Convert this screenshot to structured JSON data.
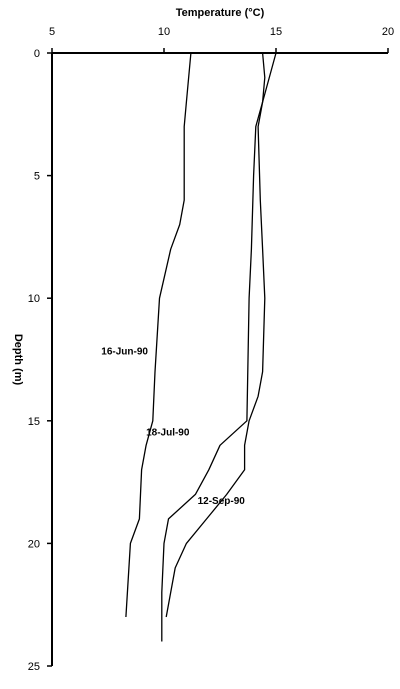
{
  "chart_data": {
    "type": "line",
    "title": "",
    "xlabel": "Temperature (°C)",
    "ylabel": "Depth (m)",
    "xlim": [
      5,
      20
    ],
    "ylim": [
      0,
      25
    ],
    "x_ticks": [
      5,
      10,
      15,
      20
    ],
    "y_ticks": [
      0,
      5,
      10,
      15,
      20,
      25
    ],
    "x_tick_labels": [
      "5",
      "10",
      "15",
      "20"
    ],
    "y_tick_labels": [
      "0",
      "5",
      "10",
      "15",
      "20",
      "25"
    ],
    "x_axis_position": "top",
    "y_axis_direction": "depth increasing downward",
    "grid": false,
    "legend": "none; series labelled inline",
    "series": [
      {
        "name": "16-Jun-90",
        "color": "#000000",
        "points": [
          {
            "temp": 11.2,
            "depth": 0
          },
          {
            "temp": 11.0,
            "depth": 2
          },
          {
            "temp": 10.9,
            "depth": 3
          },
          {
            "temp": 10.9,
            "depth": 6
          },
          {
            "temp": 10.7,
            "depth": 7
          },
          {
            "temp": 10.3,
            "depth": 8
          },
          {
            "temp": 9.8,
            "depth": 10
          },
          {
            "temp": 9.6,
            "depth": 13
          },
          {
            "temp": 9.5,
            "depth": 15
          },
          {
            "temp": 9.2,
            "depth": 16
          },
          {
            "temp": 9.0,
            "depth": 17
          },
          {
            "temp": 8.9,
            "depth": 19
          },
          {
            "temp": 8.5,
            "depth": 20
          },
          {
            "temp": 8.3,
            "depth": 23
          }
        ]
      },
      {
        "name": "18-Jul-90",
        "color": "#000000",
        "points": [
          {
            "temp": 14.4,
            "depth": 0
          },
          {
            "temp": 14.5,
            "depth": 1
          },
          {
            "temp": 14.4,
            "depth": 2
          },
          {
            "temp": 14.1,
            "depth": 3
          },
          {
            "temp": 14.0,
            "depth": 5
          },
          {
            "temp": 13.9,
            "depth": 8
          },
          {
            "temp": 13.8,
            "depth": 10
          },
          {
            "temp": 13.7,
            "depth": 15
          },
          {
            "temp": 12.5,
            "depth": 16
          },
          {
            "temp": 12.0,
            "depth": 17
          },
          {
            "temp": 11.4,
            "depth": 18
          },
          {
            "temp": 10.2,
            "depth": 19
          },
          {
            "temp": 10.0,
            "depth": 20
          },
          {
            "temp": 9.9,
            "depth": 22
          },
          {
            "temp": 9.9,
            "depth": 24
          }
        ]
      },
      {
        "name": "12-Sep-90",
        "color": "#000000",
        "points": [
          {
            "temp": 15.0,
            "depth": 0
          },
          {
            "temp": 14.7,
            "depth": 1
          },
          {
            "temp": 14.4,
            "depth": 2
          },
          {
            "temp": 14.2,
            "depth": 3
          },
          {
            "temp": 14.3,
            "depth": 6
          },
          {
            "temp": 14.4,
            "depth": 8
          },
          {
            "temp": 14.5,
            "depth": 10
          },
          {
            "temp": 14.4,
            "depth": 13
          },
          {
            "temp": 14.2,
            "depth": 14
          },
          {
            "temp": 13.8,
            "depth": 15
          },
          {
            "temp": 13.6,
            "depth": 16
          },
          {
            "temp": 13.6,
            "depth": 17
          },
          {
            "temp": 12.8,
            "depth": 18
          },
          {
            "temp": 11.9,
            "depth": 19
          },
          {
            "temp": 11.0,
            "depth": 20
          },
          {
            "temp": 10.5,
            "depth": 21
          },
          {
            "temp": 10.3,
            "depth": 22
          },
          {
            "temp": 10.1,
            "depth": 23
          }
        ]
      }
    ]
  }
}
